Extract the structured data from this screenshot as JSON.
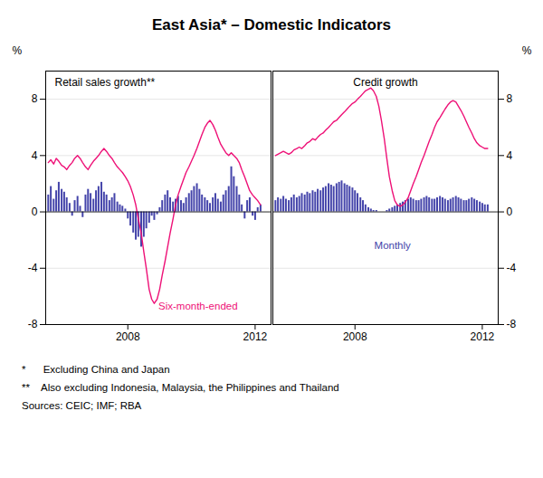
{
  "title": "East Asia* – Domestic Indicators",
  "footnotes": [
    "*      Excluding China and Japan",
    "**    Also excluding Indonesia, Malaysia, the Philippines and Thailand",
    "Sources: CEIC; IMF; RBA"
  ],
  "chart_data": [
    {
      "type": "bar",
      "title": "Retail sales growth**",
      "ylabel": "%",
      "x": [
        2005.5,
        2005.58,
        2005.67,
        2005.75,
        2005.83,
        2005.92,
        2006.0,
        2006.08,
        2006.17,
        2006.25,
        2006.33,
        2006.42,
        2006.5,
        2006.58,
        2006.67,
        2006.75,
        2006.83,
        2006.92,
        2007.0,
        2007.08,
        2007.17,
        2007.25,
        2007.33,
        2007.42,
        2007.5,
        2007.58,
        2007.67,
        2007.75,
        2007.83,
        2007.92,
        2008.0,
        2008.08,
        2008.17,
        2008.25,
        2008.33,
        2008.42,
        2008.5,
        2008.58,
        2008.67,
        2008.75,
        2008.83,
        2008.92,
        2009.0,
        2009.08,
        2009.17,
        2009.25,
        2009.33,
        2009.42,
        2009.5,
        2009.58,
        2009.67,
        2009.75,
        2009.83,
        2009.92,
        2010.0,
        2010.08,
        2010.17,
        2010.25,
        2010.33,
        2010.42,
        2010.5,
        2010.58,
        2010.67,
        2010.75,
        2010.83,
        2010.92,
        2011.0,
        2011.08,
        2011.17,
        2011.25,
        2011.33,
        2011.42,
        2011.5,
        2011.58,
        2011.67,
        2011.75,
        2011.83,
        2011.92,
        2012.0,
        2012.08,
        2012.17
      ],
      "series": [
        {
          "type": "bar",
          "color": "#4444aa",
          "values": [
            1.2,
            1.8,
            0.9,
            1.5,
            2.1,
            1.6,
            1.4,
            1.0,
            0.6,
            -0.3,
            0.8,
            1.1,
            0.4,
            -0.4,
            1.2,
            1.6,
            1.3,
            0.9,
            1.5,
            1.8,
            2.1,
            1.4,
            1.2,
            0.8,
            1.0,
            1.3,
            0.7,
            0.5,
            0.4,
            0.2,
            -0.5,
            -1.0,
            -1.5,
            -2.0,
            -1.8,
            -2.5,
            -1.8,
            -1.2,
            -0.8,
            -0.3,
            -0.6,
            -0.2,
            0.3,
            0.8,
            1.2,
            1.5,
            1.0,
            0.7,
            0.9,
            1.1,
            0.8,
            0.6,
            1.0,
            1.3,
            1.5,
            1.8,
            2.0,
            1.6,
            1.2,
            1.0,
            0.8,
            0.6,
            1.0,
            1.3,
            0.9,
            0.7,
            1.2,
            1.5,
            1.8,
            3.2,
            2.5,
            1.8,
            1.2,
            0.5,
            -0.5,
            0.8,
            1.0,
            -0.3,
            -0.6,
            0.3,
            0.5
          ]
        },
        {
          "type": "line",
          "color": "#ee1177",
          "values": [
            3.5,
            3.7,
            3.4,
            3.8,
            3.6,
            3.3,
            3.2,
            3.0,
            3.3,
            3.5,
            3.8,
            4.0,
            3.8,
            3.5,
            3.2,
            3.0,
            3.3,
            3.6,
            3.8,
            4.0,
            4.3,
            4.5,
            4.3,
            4.0,
            3.8,
            3.5,
            3.2,
            3.0,
            2.8,
            2.5,
            2.2,
            1.8,
            1.2,
            0.5,
            -0.5,
            -1.5,
            -2.8,
            -4.0,
            -5.5,
            -6.2,
            -6.5,
            -6.2,
            -5.5,
            -4.5,
            -3.5,
            -2.5,
            -1.5,
            -0.5,
            0.5,
            1.2,
            1.8,
            2.3,
            2.8,
            3.2,
            3.6,
            4.0,
            4.5,
            5.0,
            5.5,
            6.0,
            6.3,
            6.5,
            6.2,
            5.8,
            5.3,
            4.8,
            4.5,
            4.2,
            4.0,
            4.2,
            4.0,
            3.8,
            3.5,
            3.0,
            2.5,
            2.0,
            1.5,
            1.2,
            1.0,
            0.8,
            0.5
          ]
        }
      ],
      "annotations": [
        {
          "text": "Six-month-ended",
          "color": "#ee1177"
        }
      ],
      "xlim": [
        2005.42,
        2012.5
      ],
      "xticks": [
        2008,
        2012
      ],
      "ylim": [
        -8,
        10
      ],
      "yticks": [
        -8,
        -4,
        0,
        4,
        8
      ],
      "grid": true
    },
    {
      "type": "bar",
      "title": "Credit growth",
      "ylabel": "%",
      "x": [
        2005.5,
        2005.58,
        2005.67,
        2005.75,
        2005.83,
        2005.92,
        2006.0,
        2006.08,
        2006.17,
        2006.25,
        2006.33,
        2006.42,
        2006.5,
        2006.58,
        2006.67,
        2006.75,
        2006.83,
        2006.92,
        2007.0,
        2007.08,
        2007.17,
        2007.25,
        2007.33,
        2007.42,
        2007.5,
        2007.58,
        2007.67,
        2007.75,
        2007.83,
        2007.92,
        2008.0,
        2008.08,
        2008.17,
        2008.25,
        2008.33,
        2008.42,
        2008.5,
        2008.58,
        2008.67,
        2008.75,
        2008.83,
        2008.92,
        2009.0,
        2009.08,
        2009.17,
        2009.25,
        2009.33,
        2009.42,
        2009.5,
        2009.58,
        2009.67,
        2009.75,
        2009.83,
        2009.92,
        2010.0,
        2010.08,
        2010.17,
        2010.25,
        2010.33,
        2010.42,
        2010.5,
        2010.58,
        2010.67,
        2010.75,
        2010.83,
        2010.92,
        2011.0,
        2011.08,
        2011.17,
        2011.25,
        2011.33,
        2011.42,
        2011.5,
        2011.58,
        2011.67,
        2011.75,
        2011.83,
        2011.92,
        2012.0,
        2012.08,
        2012.17
      ],
      "series": [
        {
          "type": "bar",
          "color": "#4444aa",
          "values": [
            0.8,
            1.0,
            0.9,
            1.1,
            0.9,
            0.8,
            1.0,
            1.2,
            1.0,
            1.1,
            1.3,
            1.2,
            1.4,
            1.3,
            1.5,
            1.4,
            1.6,
            1.5,
            1.7,
            1.8,
            2.0,
            1.9,
            1.8,
            2.0,
            2.1,
            2.2,
            2.0,
            1.9,
            1.8,
            1.7,
            1.5,
            1.3,
            1.0,
            0.8,
            0.5,
            0.3,
            0.2,
            0.1,
            0.1,
            0.0,
            0.0,
            0.0,
            0.1,
            0.2,
            0.3,
            0.4,
            0.5,
            0.6,
            0.7,
            0.8,
            0.9,
            1.0,
            0.9,
            0.8,
            0.8,
            0.9,
            1.0,
            1.1,
            1.0,
            0.9,
            0.9,
            1.0,
            1.1,
            1.0,
            0.9,
            0.8,
            0.9,
            1.0,
            1.1,
            1.0,
            0.9,
            0.8,
            0.8,
            0.9,
            1.0,
            0.9,
            0.8,
            0.7,
            0.6,
            0.5,
            0.5
          ]
        },
        {
          "type": "line",
          "color": "#ee1177",
          "values": [
            4.0,
            4.1,
            4.2,
            4.3,
            4.2,
            4.1,
            4.2,
            4.4,
            4.5,
            4.6,
            4.5,
            4.7,
            4.9,
            5.0,
            5.2,
            5.1,
            5.3,
            5.5,
            5.6,
            5.8,
            6.0,
            6.2,
            6.4,
            6.5,
            6.7,
            6.9,
            7.1,
            7.3,
            7.5,
            7.7,
            7.8,
            8.0,
            8.2,
            8.4,
            8.6,
            8.7,
            8.8,
            8.6,
            8.2,
            7.5,
            6.5,
            5.2,
            3.8,
            2.5,
            1.5,
            0.8,
            0.5,
            0.4,
            0.5,
            0.7,
            1.0,
            1.5,
            2.0,
            2.5,
            3.0,
            3.5,
            4.0,
            4.5,
            5.0,
            5.5,
            6.0,
            6.4,
            6.7,
            7.0,
            7.3,
            7.6,
            7.8,
            7.9,
            7.8,
            7.5,
            7.2,
            6.8,
            6.4,
            6.0,
            5.6,
            5.2,
            4.9,
            4.7,
            4.6,
            4.5,
            4.5
          ]
        }
      ],
      "annotations": [
        {
          "text": "Monthly",
          "color": "#4444aa"
        }
      ],
      "xlim": [
        2005.42,
        2012.5
      ],
      "xticks": [
        2008,
        2012
      ],
      "ylim": [
        -8,
        10
      ],
      "yticks": [
        -8,
        -4,
        0,
        4,
        8
      ],
      "grid": true
    }
  ]
}
